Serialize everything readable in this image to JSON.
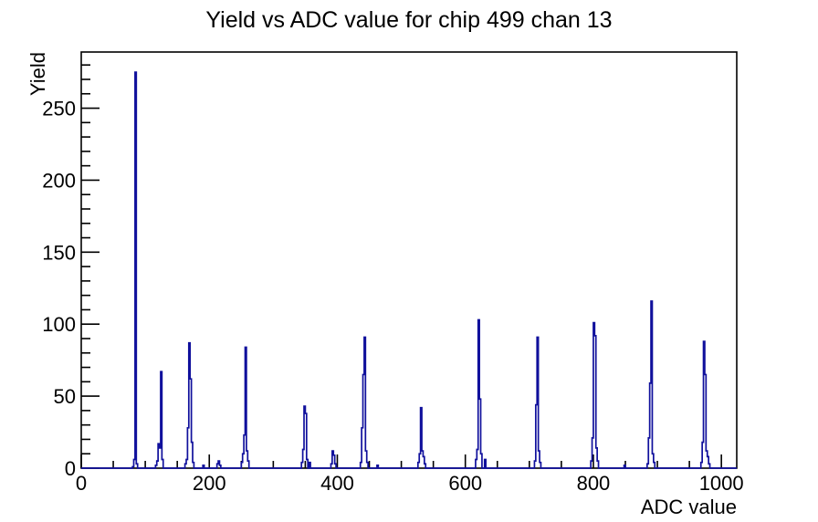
{
  "title": "Yield vs ADC value for chip 499 chan 13",
  "colors": {
    "background": "#ffffff",
    "histogram_line": "#10109c",
    "axis": "#000000",
    "text": "#000000"
  },
  "chart_data": {
    "type": "bar",
    "title": "Yield vs ADC value for chip 499 chan 13",
    "xlabel": "ADC value",
    "ylabel": "Yield",
    "xlim": [
      0,
      1024
    ],
    "ylim": [
      0,
      289
    ],
    "grid": false,
    "legend": false,
    "x_major_ticks": [
      0,
      200,
      400,
      600,
      800,
      1000
    ],
    "x_minor_step": 50,
    "y_major_ticks": [
      0,
      50,
      100,
      150,
      200,
      250
    ],
    "y_minor_step": 10,
    "bin_width": 2,
    "bins": [
      [
        80,
        1
      ],
      [
        82,
        6
      ],
      [
        84,
        275
      ],
      [
        86,
        3
      ],
      [
        116,
        2
      ],
      [
        118,
        5
      ],
      [
        120,
        17
      ],
      [
        122,
        14
      ],
      [
        124,
        67
      ],
      [
        126,
        6
      ],
      [
        162,
        3
      ],
      [
        164,
        6
      ],
      [
        166,
        28
      ],
      [
        168,
        87
      ],
      [
        170,
        62
      ],
      [
        172,
        18
      ],
      [
        174,
        4
      ],
      [
        190,
        2
      ],
      [
        212,
        3
      ],
      [
        214,
        5
      ],
      [
        216,
        2
      ],
      [
        250,
        4
      ],
      [
        252,
        10
      ],
      [
        254,
        23
      ],
      [
        256,
        84
      ],
      [
        258,
        12
      ],
      [
        260,
        5
      ],
      [
        344,
        4
      ],
      [
        346,
        13
      ],
      [
        348,
        43
      ],
      [
        350,
        38
      ],
      [
        352,
        6
      ],
      [
        356,
        4
      ],
      [
        390,
        3
      ],
      [
        392,
        12
      ],
      [
        394,
        9
      ],
      [
        396,
        3
      ],
      [
        436,
        4
      ],
      [
        438,
        28
      ],
      [
        440,
        65
      ],
      [
        442,
        91
      ],
      [
        444,
        12
      ],
      [
        446,
        4
      ],
      [
        462,
        2
      ],
      [
        526,
        4
      ],
      [
        528,
        10
      ],
      [
        530,
        42
      ],
      [
        532,
        12
      ],
      [
        534,
        8
      ],
      [
        536,
        3
      ],
      [
        616,
        6
      ],
      [
        618,
        13
      ],
      [
        620,
        103
      ],
      [
        622,
        48
      ],
      [
        624,
        10
      ],
      [
        630,
        6
      ],
      [
        708,
        5
      ],
      [
        710,
        44
      ],
      [
        712,
        91
      ],
      [
        714,
        12
      ],
      [
        716,
        4
      ],
      [
        796,
        5
      ],
      [
        798,
        21
      ],
      [
        800,
        101
      ],
      [
        802,
        92
      ],
      [
        804,
        14
      ],
      [
        806,
        5
      ],
      [
        848,
        2
      ],
      [
        884,
        3
      ],
      [
        886,
        21
      ],
      [
        888,
        59
      ],
      [
        890,
        116
      ],
      [
        892,
        10
      ],
      [
        894,
        4
      ],
      [
        968,
        4
      ],
      [
        970,
        18
      ],
      [
        972,
        88
      ],
      [
        974,
        65
      ],
      [
        976,
        12
      ],
      [
        978,
        8
      ],
      [
        980,
        3
      ]
    ]
  }
}
